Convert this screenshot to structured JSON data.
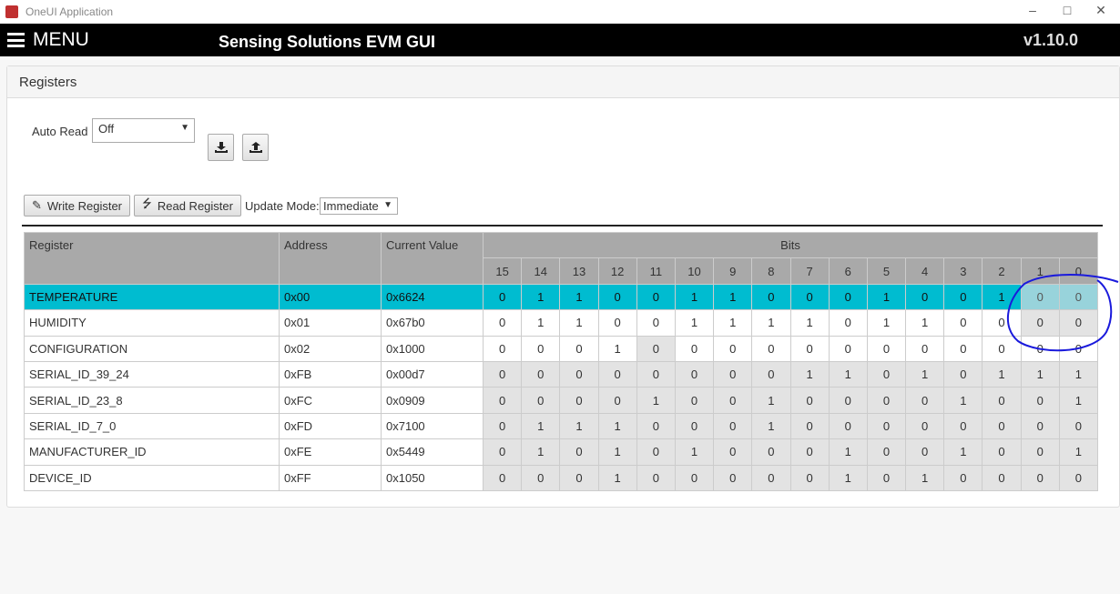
{
  "window": {
    "title": "OneUI Application",
    "controls": [
      "minimize",
      "maximize",
      "close"
    ]
  },
  "header": {
    "menu_label": "MENU",
    "app_title": "Sensing Solutions EVM GUI",
    "version": "v1.10.0"
  },
  "panel": {
    "title": "Registers"
  },
  "auto_read": {
    "label": "Auto Read",
    "value": "Off"
  },
  "icons": {
    "download": "download-icon",
    "upload": "upload-icon",
    "pencil": "pencil-icon",
    "bolt": "bolt-icon"
  },
  "toolbar": {
    "write_label": "Write Register",
    "read_label": "Read Register",
    "update_mode_label": "Update Mode:",
    "update_mode_value": "Immediate"
  },
  "colors": {
    "selected_row": "#00bcd0",
    "readonly_cell": "#e3e3e3",
    "header": "#a9a9a9",
    "annotation": "#1a1adc"
  },
  "table": {
    "headers": {
      "register": "Register",
      "address": "Address",
      "current_value": "Current Value",
      "bits": "Bits"
    },
    "bit_labels": [
      "15",
      "14",
      "13",
      "12",
      "11",
      "10",
      "9",
      "8",
      "7",
      "6",
      "5",
      "4",
      "3",
      "2",
      "1",
      "0"
    ],
    "selected_row": 0,
    "rows": [
      {
        "name": "TEMPERATURE",
        "address": "0x00",
        "value": "0x6624",
        "bits": [
          "0",
          "1",
          "1",
          "0",
          "0",
          "1",
          "1",
          "0",
          "0",
          "0",
          "1",
          "0",
          "0",
          "1",
          "0",
          "0"
        ],
        "readonly_bits": [
          "1",
          "0"
        ]
      },
      {
        "name": "HUMIDITY",
        "address": "0x01",
        "value": "0x67b0",
        "bits": [
          "0",
          "1",
          "1",
          "0",
          "0",
          "1",
          "1",
          "1",
          "1",
          "0",
          "1",
          "1",
          "0",
          "0",
          "0",
          "0"
        ],
        "readonly_bits": [
          "1",
          "0"
        ]
      },
      {
        "name": "CONFIGURATION",
        "address": "0x02",
        "value": "0x1000",
        "bits": [
          "0",
          "0",
          "0",
          "1",
          "0",
          "0",
          "0",
          "0",
          "0",
          "0",
          "0",
          "0",
          "0",
          "0",
          "0",
          "0"
        ],
        "readonly_bits": [
          "11"
        ]
      },
      {
        "name": "SERIAL_ID_39_24",
        "address": "0xFB",
        "value": "0x00d7",
        "bits": [
          "0",
          "0",
          "0",
          "0",
          "0",
          "0",
          "0",
          "0",
          "1",
          "1",
          "0",
          "1",
          "0",
          "1",
          "1",
          "1"
        ],
        "readonly_bits": "all"
      },
      {
        "name": "SERIAL_ID_23_8",
        "address": "0xFC",
        "value": "0x0909",
        "bits": [
          "0",
          "0",
          "0",
          "0",
          "1",
          "0",
          "0",
          "1",
          "0",
          "0",
          "0",
          "0",
          "1",
          "0",
          "0",
          "1"
        ],
        "readonly_bits": "all"
      },
      {
        "name": "SERIAL_ID_7_0",
        "address": "0xFD",
        "value": "0x7100",
        "bits": [
          "0",
          "1",
          "1",
          "1",
          "0",
          "0",
          "0",
          "1",
          "0",
          "0",
          "0",
          "0",
          "0",
          "0",
          "0",
          "0"
        ],
        "readonly_bits": "all"
      },
      {
        "name": "MANUFACTURER_ID",
        "address": "0xFE",
        "value": "0x5449",
        "bits": [
          "0",
          "1",
          "0",
          "1",
          "0",
          "1",
          "0",
          "0",
          "0",
          "1",
          "0",
          "0",
          "1",
          "0",
          "0",
          "1"
        ],
        "readonly_bits": "all"
      },
      {
        "name": "DEVICE_ID",
        "address": "0xFF",
        "value": "0x1050",
        "bits": [
          "0",
          "0",
          "0",
          "1",
          "0",
          "0",
          "0",
          "0",
          "0",
          "1",
          "0",
          "1",
          "0",
          "0",
          "0",
          "0"
        ],
        "readonly_bits": "all"
      }
    ]
  }
}
